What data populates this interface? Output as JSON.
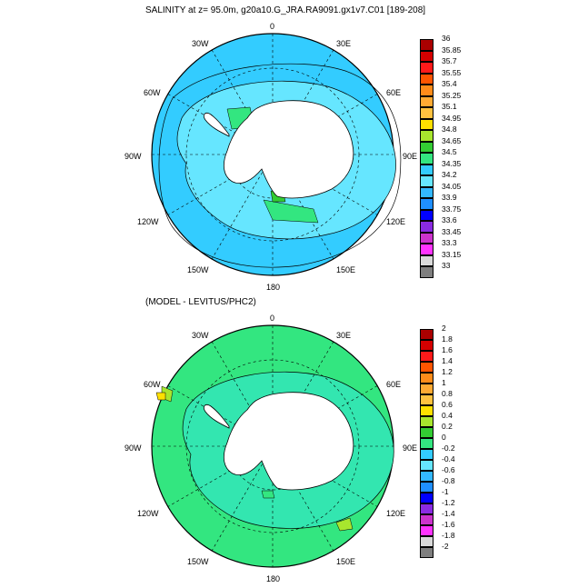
{
  "panels": [
    {
      "title": "SALINITY at z=  95.0m, g20a10.G_JRA.RA9091.gx1v7.C01 [189-208]",
      "longitude_labels": [
        "0",
        "30E",
        "60E",
        "90E",
        "120E",
        "150E",
        "180",
        "150W",
        "120W",
        "90W",
        "60W",
        "30W"
      ],
      "colorbar": {
        "labels": [
          "36",
          "35.85",
          "35.7",
          "35.55",
          "35.4",
          "35.25",
          "35.1",
          "34.95",
          "34.8",
          "34.65",
          "34.5",
          "34.35",
          "34.2",
          "34.05",
          "33.9",
          "33.75",
          "33.6",
          "33.45",
          "33.3",
          "33.15",
          "33"
        ],
        "colors": [
          "#aa0000",
          "#d40000",
          "#ff1a1a",
          "#ff5500",
          "#ff8c1a",
          "#ffaa33",
          "#ffc240",
          "#ffe000",
          "#a8e62e",
          "#33cc33",
          "#33e680",
          "#33ccff",
          "#66e6ff",
          "#33b8ff",
          "#1f8fff",
          "#0000ff",
          "#8a2be2",
          "#cc33cc",
          "#ff33ff",
          "#d9d9d9"
        ],
        "data_bottom_swatch": "#7f7f7f"
      },
      "ocean_color": "#33ccff",
      "shelf_color": "#66e6ff",
      "patch_colors": [
        "#33e680",
        "#33cc33"
      ]
    },
    {
      "title": "(MODEL - LEVITUS/PHC2)",
      "longitude_labels": [
        "0",
        "30E",
        "60E",
        "90E",
        "120E",
        "150E",
        "180",
        "150W",
        "120W",
        "90W",
        "60W",
        "30W"
      ],
      "colorbar": {
        "labels": [
          "2",
          "1.8",
          "1.6",
          "1.4",
          "1.2",
          "1",
          "0.8",
          "0.6",
          "0.4",
          "0.2",
          "0",
          "-0.2",
          "-0.4",
          "-0.6",
          "-0.8",
          "-1",
          "-1.2",
          "-1.4",
          "-1.6",
          "-1.8",
          "-2"
        ],
        "colors": [
          "#aa0000",
          "#d40000",
          "#ff1a1a",
          "#ff5500",
          "#ff8c1a",
          "#ffaa33",
          "#ffc240",
          "#ffe000",
          "#a8e62e",
          "#33cc33",
          "#33e680",
          "#33ccff",
          "#66e6ff",
          "#33b8ff",
          "#1f8fff",
          "#0000ff",
          "#8a2be2",
          "#cc33cc",
          "#ff33ff",
          "#d9d9d9"
        ],
        "data_bottom_swatch": "#7f7f7f"
      },
      "ocean_color": "#33e680",
      "shelf_color": "#33e6b0",
      "patch_colors": [
        "#a8e62e",
        "#ffe000"
      ]
    }
  ]
}
